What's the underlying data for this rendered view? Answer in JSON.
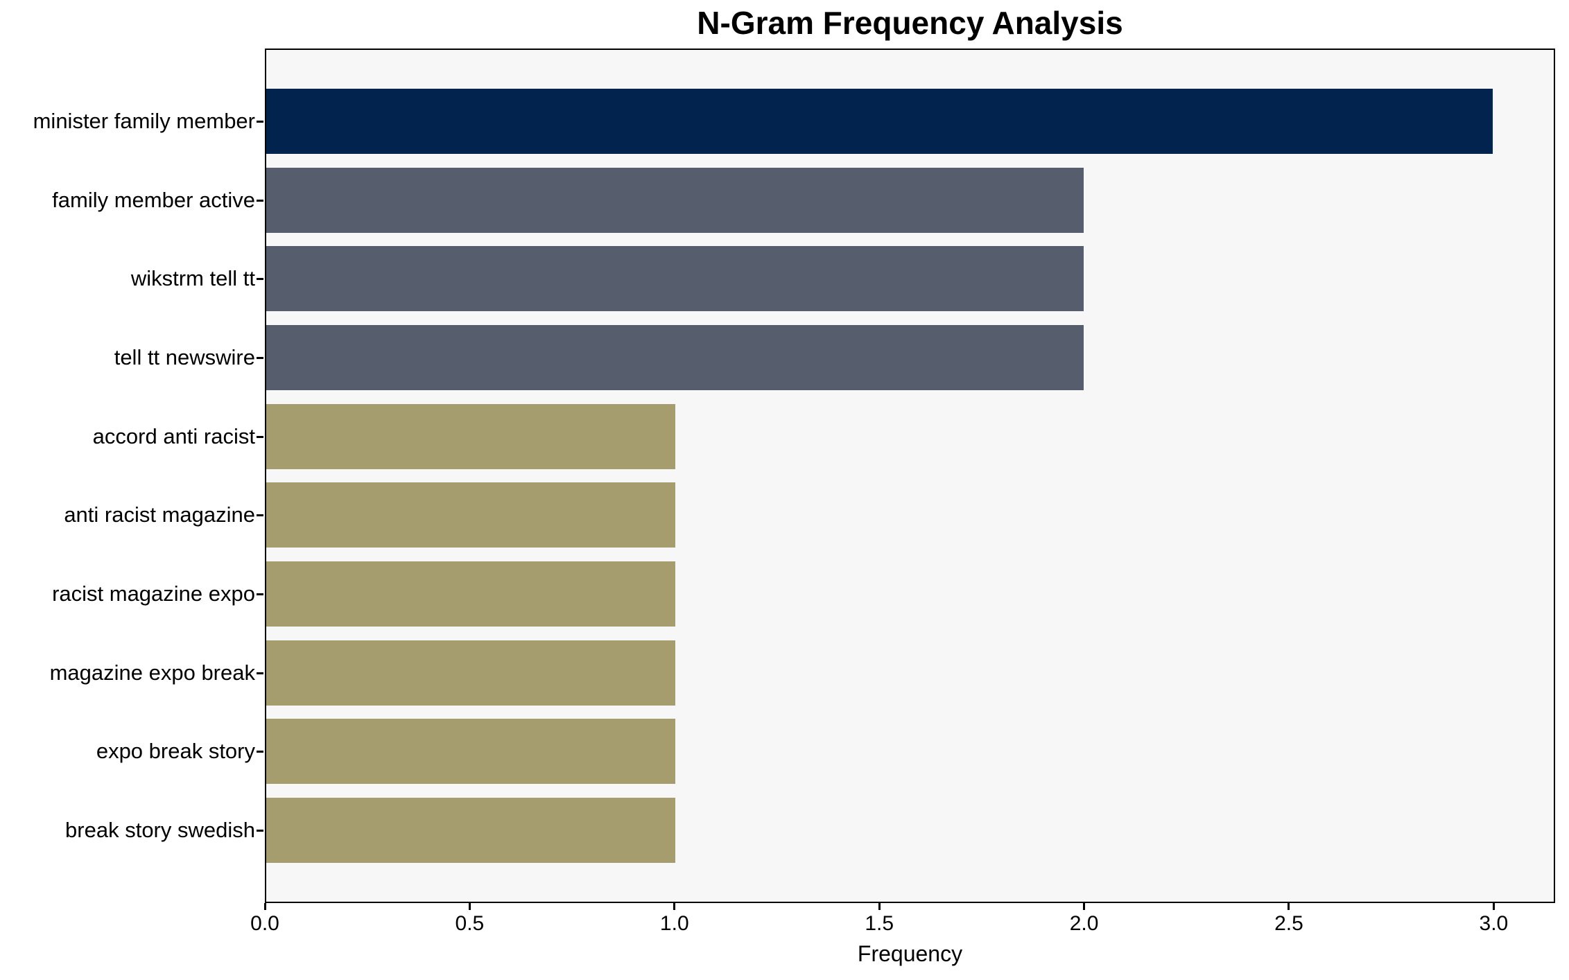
{
  "page": {
    "background": "#ffffff"
  },
  "chart_data": {
    "type": "bar",
    "orientation": "horizontal",
    "title": "N-Gram Frequency Analysis",
    "xlabel": "Frequency",
    "ylabel": "",
    "categories": [
      "minister family member",
      "family member active",
      "wikstrm tell tt",
      "tell tt newswire",
      "accord anti racist",
      "anti racist magazine",
      "racist magazine expo",
      "magazine expo break",
      "expo break story",
      "break story swedish"
    ],
    "values": [
      3,
      2,
      2,
      2,
      1,
      1,
      1,
      1,
      1,
      1
    ],
    "bar_colors": [
      "#02234d",
      "#565d6d",
      "#565d6d",
      "#565d6d",
      "#a69d6f",
      "#a69d6f",
      "#a69d6f",
      "#a69d6f",
      "#a69d6f",
      "#a69d6f"
    ],
    "xlim": [
      0,
      3.15
    ],
    "xticks": [
      0.0,
      0.5,
      1.0,
      1.5,
      2.0,
      2.5,
      3.0
    ],
    "xtick_labels": [
      "0.0",
      "0.5",
      "1.0",
      "1.5",
      "2.0",
      "2.5",
      "3.0"
    ],
    "grid": false,
    "legend": null,
    "plot_bg": "#f7f7f7",
    "axis_color": "#000000"
  }
}
